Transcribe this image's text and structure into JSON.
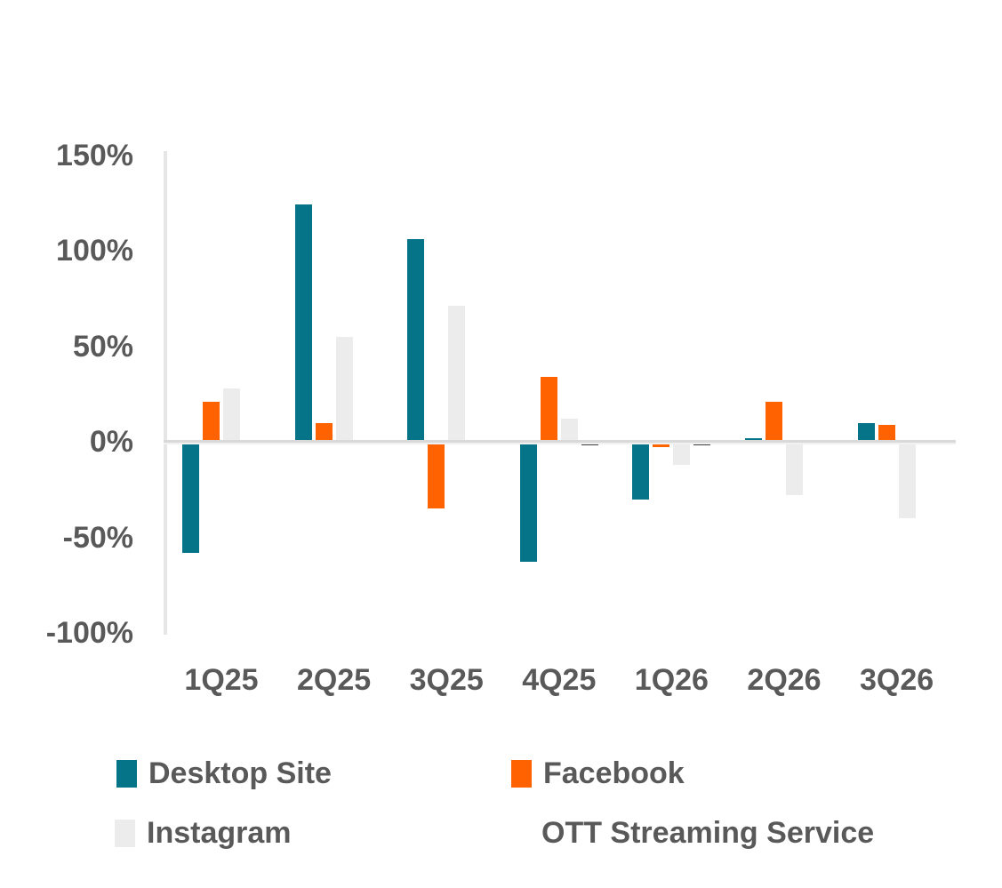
{
  "chart_data": {
    "type": "bar",
    "title": "",
    "xlabel": "",
    "ylabel": "",
    "categories": [
      "1Q25",
      "2Q25",
      "3Q25",
      "4Q25",
      "1Q26",
      "2Q26",
      "3Q26"
    ],
    "series": [
      {
        "name": "Desktop Site",
        "color": "#057488",
        "legend_swatch_visible": true,
        "values": [
          -58,
          124,
          106,
          -63,
          -30,
          2,
          10
        ]
      },
      {
        "name": "Facebook",
        "color": "#FF6200",
        "legend_swatch_visible": true,
        "values": [
          21,
          10,
          -35,
          34,
          -3,
          21,
          9
        ]
      },
      {
        "name": "Instagram",
        "color": "#ECECEC",
        "legend_swatch_visible": true,
        "values": [
          28,
          55,
          71,
          12,
          -12,
          -28,
          -40
        ]
      },
      {
        "name": "OTT Streaming Service",
        "color": "#3F3F3F",
        "legend_swatch_visible": false,
        "values": [
          1,
          1,
          1,
          -2,
          -2,
          1,
          1
        ]
      }
    ],
    "ylim": [
      -100,
      150
    ],
    "yticks": [
      {
        "label": "150%",
        "value": 150
      },
      {
        "label": "100%",
        "value": 100
      },
      {
        "label": "50%",
        "value": 50
      },
      {
        "label": "0%",
        "value": 0
      },
      {
        "label": "-50%",
        "value": -50
      },
      {
        "label": "-100%",
        "value": -100
      }
    ],
    "grid": false,
    "legend_position": "bottom",
    "colors": {
      "axis_line": "#d9d9d9",
      "tick_text": "#595959",
      "legend_text": "#595959",
      "background": "#ffffff"
    }
  }
}
